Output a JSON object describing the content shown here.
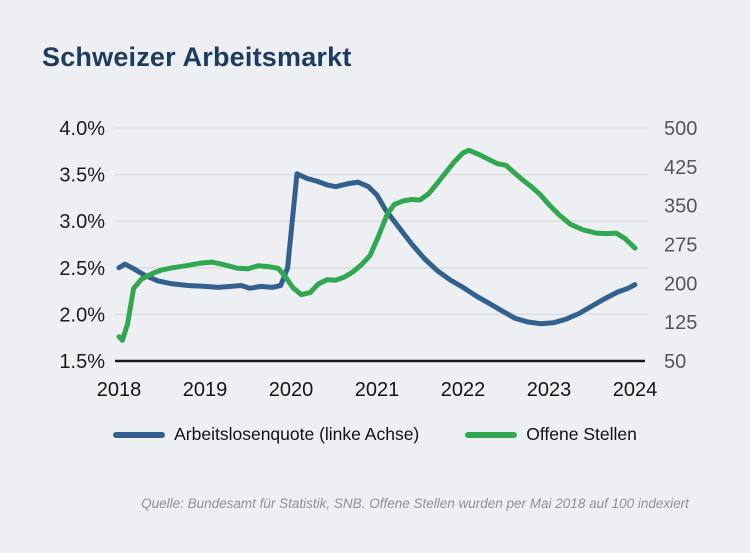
{
  "title": "Schweizer Arbeitsmarkt",
  "source_note": "Quelle: Bundesamt für Statistik, SNB. Offene Stellen wurden per Mai 2018 auf 100 indexiert",
  "legend": {
    "items": [
      {
        "label": "Arbeitslosenquote (linke Achse)",
        "color": "#33618f"
      },
      {
        "label": "Offene Stellen",
        "color": "#31a752"
      }
    ]
  },
  "colors": {
    "background": "#edeff3",
    "title": "#1d3c5e",
    "grid": "#d8dade",
    "axis": "#17181a",
    "unemployment_line": "#33618f",
    "open_positions_line": "#31a752"
  },
  "chart_data": {
    "type": "line",
    "title": "Schweizer Arbeitsmarkt",
    "grid": true,
    "legend_position": "bottom",
    "x_start": 2018,
    "x_end": 2024,
    "x_ticks": [
      {
        "value": 2018,
        "label": "2018"
      },
      {
        "value": 2019,
        "label": "2019"
      },
      {
        "value": 2020,
        "label": "2020"
      },
      {
        "value": 2021,
        "label": "2021"
      },
      {
        "value": 2022,
        "label": "2022"
      },
      {
        "value": 2023,
        "label": "2023"
      },
      {
        "value": 2024,
        "label": "2024"
      }
    ],
    "left_axis": {
      "name": "Arbeitslosenquote",
      "unit": "%",
      "min": 1.5,
      "max": 4.0,
      "ticks": [
        {
          "value": 4.0,
          "label": "4.0%"
        },
        {
          "value": 3.5,
          "label": "3.5%"
        },
        {
          "value": 3.0,
          "label": "3.0%"
        },
        {
          "value": 2.5,
          "label": "2.5%"
        },
        {
          "value": 2.0,
          "label": "2.0%"
        },
        {
          "value": 1.5,
          "label": "1.5%"
        }
      ]
    },
    "right_axis": {
      "name": "Offene Stellen (Index, Mai 2018 = 100)",
      "unit": "Index",
      "min": 50,
      "max": 500,
      "ticks": [
        {
          "value": 500,
          "label": "500"
        },
        {
          "value": 425,
          "label": "425"
        },
        {
          "value": 350,
          "label": "350"
        },
        {
          "value": 275,
          "label": "275"
        },
        {
          "value": 200,
          "label": "200"
        },
        {
          "value": 125,
          "label": "125"
        },
        {
          "value": 50,
          "label": "50"
        }
      ]
    },
    "series": [
      {
        "name": "Arbeitslosenquote (linke Achse)",
        "data_name": "unemployment-line",
        "axis": "left",
        "color": "#33618f",
        "points": [
          [
            2018.0,
            2.5
          ],
          [
            2018.07,
            2.54
          ],
          [
            2018.17,
            2.49
          ],
          [
            2018.3,
            2.42
          ],
          [
            2018.45,
            2.36
          ],
          [
            2018.6,
            2.33
          ],
          [
            2018.8,
            2.31
          ],
          [
            2019.0,
            2.3
          ],
          [
            2019.15,
            2.29
          ],
          [
            2019.3,
            2.3
          ],
          [
            2019.42,
            2.31
          ],
          [
            2019.52,
            2.28
          ],
          [
            2019.65,
            2.3
          ],
          [
            2019.78,
            2.29
          ],
          [
            2019.88,
            2.31
          ],
          [
            2019.96,
            2.5
          ],
          [
            2020.07,
            3.51
          ],
          [
            2020.18,
            3.46
          ],
          [
            2020.3,
            3.43
          ],
          [
            2020.42,
            3.39
          ],
          [
            2020.52,
            3.37
          ],
          [
            2020.65,
            3.4
          ],
          [
            2020.78,
            3.42
          ],
          [
            2020.9,
            3.37
          ],
          [
            2021.0,
            3.28
          ],
          [
            2021.1,
            3.12
          ],
          [
            2021.25,
            2.94
          ],
          [
            2021.4,
            2.76
          ],
          [
            2021.55,
            2.6
          ],
          [
            2021.7,
            2.47
          ],
          [
            2021.85,
            2.37
          ],
          [
            2022.0,
            2.29
          ],
          [
            2022.15,
            2.2
          ],
          [
            2022.3,
            2.12
          ],
          [
            2022.45,
            2.04
          ],
          [
            2022.6,
            1.96
          ],
          [
            2022.75,
            1.92
          ],
          [
            2022.9,
            1.9
          ],
          [
            2023.05,
            1.91
          ],
          [
            2023.2,
            1.95
          ],
          [
            2023.35,
            2.01
          ],
          [
            2023.5,
            2.09
          ],
          [
            2023.65,
            2.17
          ],
          [
            2023.8,
            2.24
          ],
          [
            2023.92,
            2.28
          ],
          [
            2024.0,
            2.32
          ]
        ]
      },
      {
        "name": "Offene Stellen",
        "data_name": "open-positions-line",
        "axis": "right",
        "color": "#31a752",
        "points": [
          [
            2018.0,
            97
          ],
          [
            2018.04,
            90
          ],
          [
            2018.1,
            122
          ],
          [
            2018.17,
            190
          ],
          [
            2018.26,
            208
          ],
          [
            2018.4,
            220
          ],
          [
            2018.5,
            226
          ],
          [
            2018.62,
            230
          ],
          [
            2018.78,
            234
          ],
          [
            2018.95,
            239
          ],
          [
            2019.08,
            241
          ],
          [
            2019.22,
            236
          ],
          [
            2019.38,
            229
          ],
          [
            2019.5,
            228
          ],
          [
            2019.62,
            234
          ],
          [
            2019.75,
            232
          ],
          [
            2019.85,
            229
          ],
          [
            2019.93,
            214
          ],
          [
            2020.02,
            192
          ],
          [
            2020.12,
            178
          ],
          [
            2020.22,
            182
          ],
          [
            2020.32,
            199
          ],
          [
            2020.42,
            207
          ],
          [
            2020.52,
            206
          ],
          [
            2020.62,
            212
          ],
          [
            2020.72,
            222
          ],
          [
            2020.82,
            236
          ],
          [
            2020.92,
            254
          ],
          [
            2021.02,
            292
          ],
          [
            2021.12,
            334
          ],
          [
            2021.2,
            352
          ],
          [
            2021.3,
            359
          ],
          [
            2021.4,
            362
          ],
          [
            2021.5,
            361
          ],
          [
            2021.6,
            373
          ],
          [
            2021.7,
            393
          ],
          [
            2021.8,
            414
          ],
          [
            2021.9,
            435
          ],
          [
            2022.0,
            452
          ],
          [
            2022.07,
            457
          ],
          [
            2022.17,
            450
          ],
          [
            2022.28,
            441
          ],
          [
            2022.4,
            431
          ],
          [
            2022.5,
            428
          ],
          [
            2022.6,
            413
          ],
          [
            2022.7,
            399
          ],
          [
            2022.8,
            386
          ],
          [
            2022.9,
            371
          ],
          [
            2023.0,
            352
          ],
          [
            2023.12,
            332
          ],
          [
            2023.25,
            314
          ],
          [
            2023.4,
            303
          ],
          [
            2023.55,
            297
          ],
          [
            2023.68,
            296
          ],
          [
            2023.78,
            297
          ],
          [
            2023.88,
            287
          ],
          [
            2024.0,
            268
          ]
        ]
      }
    ]
  }
}
